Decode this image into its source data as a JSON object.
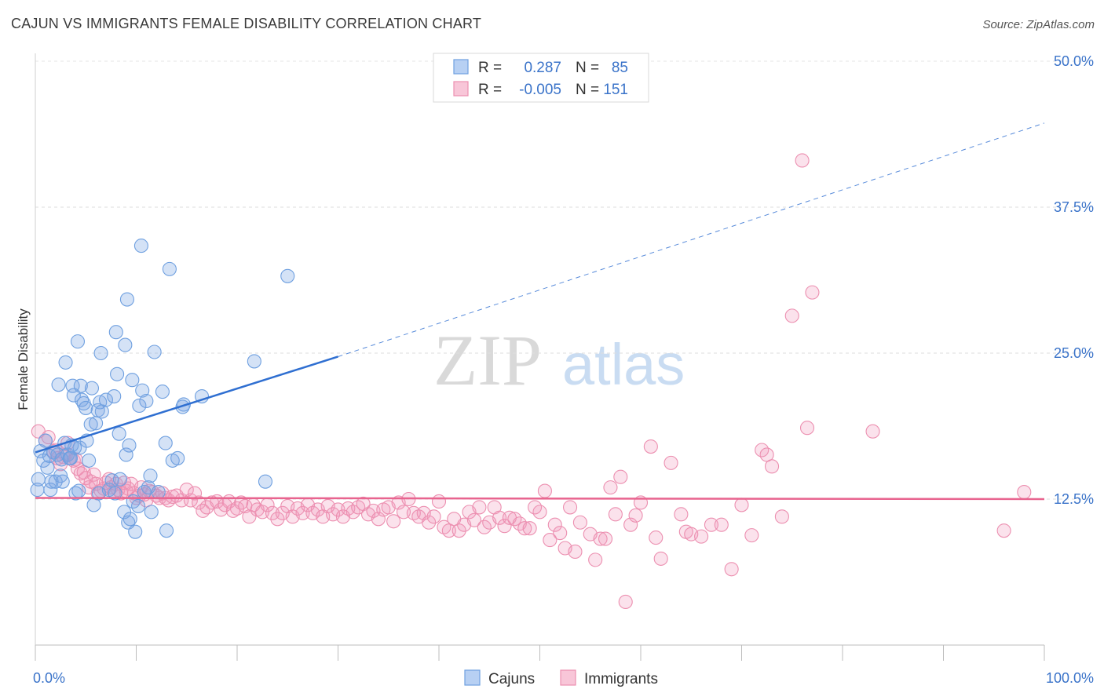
{
  "title": "CAJUN VS IMMIGRANTS FEMALE DISABILITY CORRELATION CHART",
  "source": "Source: ZipAtlas.com",
  "watermark": {
    "zip": "ZIP",
    "atlas": "atlas"
  },
  "colors": {
    "cajun": "#6fa0e0",
    "cajun_fill": "rgba(120,165,228,0.32)",
    "cajun_line": "#2f6fd1",
    "immigrant": "#ec8fb0",
    "immigrant_fill": "rgba(240,150,185,0.28)",
    "immigrant_line": "#e8648f",
    "axis_text": "#3a73c9"
  },
  "legend": {
    "r_label": "R =",
    "n_label": "N =",
    "rows": [
      {
        "r": "0.287",
        "n": "85"
      },
      {
        "r": "-0.005",
        "n": "151"
      }
    ]
  },
  "chart_data": {
    "type": "scatter",
    "xlabel": "",
    "ylabel": "Female Disability",
    "xlim": [
      0,
      100
    ],
    "ylim": [
      0,
      50
    ],
    "x_tick_labels": [
      "0.0%",
      "100.0%"
    ],
    "y_ticks": [
      12.5,
      25.0,
      37.5,
      50.0
    ],
    "y_tick_labels": [
      "12.5%",
      "25.0%",
      "37.5%",
      "50.0%"
    ],
    "grid": "horizontal dashed",
    "legend_position": "top-center",
    "series": [
      {
        "name": "Cajuns",
        "r": 0.287,
        "n": 85,
        "trend": {
          "x": [
            0,
            30
          ],
          "y": [
            16.5,
            24.7
          ],
          "extended_to": [
            100,
            44.7
          ]
        },
        "points": [
          [
            0.2,
            13.3
          ],
          [
            0.3,
            14.2
          ],
          [
            0.5,
            16.6
          ],
          [
            0.8,
            15.8
          ],
          [
            1.0,
            17.5
          ],
          [
            1.2,
            15.2
          ],
          [
            1.4,
            16.2
          ],
          [
            1.5,
            13.3
          ],
          [
            1.6,
            14.0
          ],
          [
            1.8,
            16.5
          ],
          [
            2.0,
            14.0
          ],
          [
            2.2,
            16.3
          ],
          [
            2.3,
            22.3
          ],
          [
            2.5,
            14.5
          ],
          [
            2.6,
            15.9
          ],
          [
            2.7,
            14.0
          ],
          [
            2.9,
            17.3
          ],
          [
            3.0,
            24.2
          ],
          [
            3.2,
            16.3
          ],
          [
            3.4,
            16.0
          ],
          [
            3.5,
            16.0
          ],
          [
            3.6,
            17.1
          ],
          [
            3.7,
            22.2
          ],
          [
            3.8,
            21.4
          ],
          [
            3.9,
            16.9
          ],
          [
            4.0,
            13.0
          ],
          [
            4.2,
            26.0
          ],
          [
            4.3,
            13.2
          ],
          [
            4.4,
            16.9
          ],
          [
            4.5,
            22.2
          ],
          [
            4.6,
            21.0
          ],
          [
            4.8,
            20.7
          ],
          [
            5.0,
            20.3
          ],
          [
            5.1,
            17.5
          ],
          [
            5.3,
            15.8
          ],
          [
            5.5,
            18.9
          ],
          [
            5.6,
            22.0
          ],
          [
            5.8,
            12.0
          ],
          [
            6.0,
            19.0
          ],
          [
            6.2,
            20.1
          ],
          [
            6.3,
            13.0
          ],
          [
            6.4,
            20.8
          ],
          [
            6.5,
            25.0
          ],
          [
            6.6,
            20.0
          ],
          [
            7.0,
            21.0
          ],
          [
            7.3,
            13.3
          ],
          [
            7.6,
            14.1
          ],
          [
            7.8,
            21.3
          ],
          [
            7.9,
            13.0
          ],
          [
            8.0,
            26.8
          ],
          [
            8.1,
            23.2
          ],
          [
            8.3,
            18.1
          ],
          [
            8.4,
            14.2
          ],
          [
            8.8,
            11.4
          ],
          [
            8.9,
            25.7
          ],
          [
            9.0,
            16.3
          ],
          [
            9.1,
            29.6
          ],
          [
            9.2,
            10.5
          ],
          [
            9.3,
            17.1
          ],
          [
            9.4,
            10.8
          ],
          [
            9.6,
            22.7
          ],
          [
            9.7,
            12.3
          ],
          [
            9.9,
            9.7
          ],
          [
            10.2,
            11.9
          ],
          [
            10.3,
            20.5
          ],
          [
            10.5,
            34.2
          ],
          [
            10.6,
            21.8
          ],
          [
            10.8,
            13.1
          ],
          [
            11.0,
            20.9
          ],
          [
            11.2,
            13.5
          ],
          [
            11.4,
            14.5
          ],
          [
            11.5,
            11.4
          ],
          [
            11.8,
            25.1
          ],
          [
            12.2,
            13.1
          ],
          [
            12.6,
            21.7
          ],
          [
            12.9,
            17.3
          ],
          [
            13.0,
            9.8
          ],
          [
            13.3,
            32.2
          ],
          [
            13.6,
            15.8
          ],
          [
            14.1,
            16.0
          ],
          [
            14.6,
            20.4
          ],
          [
            14.7,
            20.6
          ],
          [
            16.5,
            21.3
          ],
          [
            21.7,
            24.3
          ],
          [
            22.8,
            14.0
          ],
          [
            25.0,
            31.6
          ]
        ]
      },
      {
        "name": "Immigrants",
        "r": -0.005,
        "n": 151,
        "trend": {
          "x": [
            0,
            100
          ],
          "y": [
            12.6,
            12.5
          ]
        },
        "points": [
          [
            0.3,
            18.3
          ],
          [
            1.0,
            17.5
          ],
          [
            1.3,
            17.8
          ],
          [
            1.8,
            16.6
          ],
          [
            2.0,
            16.7
          ],
          [
            2.2,
            16.0
          ],
          [
            2.5,
            15.5
          ],
          [
            2.8,
            16.1
          ],
          [
            3.0,
            16.3
          ],
          [
            3.2,
            17.3
          ],
          [
            3.5,
            16.0
          ],
          [
            3.8,
            15.8
          ],
          [
            4.0,
            15.9
          ],
          [
            4.2,
            15.1
          ],
          [
            4.5,
            14.7
          ],
          [
            4.8,
            14.8
          ],
          [
            5.0,
            14.3
          ],
          [
            5.3,
            13.5
          ],
          [
            5.5,
            14.0
          ],
          [
            5.8,
            14.6
          ],
          [
            6.0,
            13.8
          ],
          [
            6.2,
            13.0
          ],
          [
            6.5,
            13.2
          ],
          [
            6.8,
            13.4
          ],
          [
            7.0,
            13.9
          ],
          [
            7.3,
            14.2
          ],
          [
            7.5,
            13.5
          ],
          [
            7.8,
            13.1
          ],
          [
            8.0,
            13.8
          ],
          [
            8.2,
            13.3
          ],
          [
            8.5,
            13.0
          ],
          [
            8.8,
            13.9
          ],
          [
            9.0,
            13.2
          ],
          [
            9.2,
            13.4
          ],
          [
            9.5,
            13.8
          ],
          [
            9.8,
            13.0
          ],
          [
            10.0,
            12.6
          ],
          [
            10.3,
            12.8
          ],
          [
            10.5,
            13.5
          ],
          [
            10.8,
            12.9
          ],
          [
            11.0,
            12.4
          ],
          [
            11.3,
            13.2
          ],
          [
            11.6,
            13.1
          ],
          [
            12.0,
            12.8
          ],
          [
            12.3,
            12.6
          ],
          [
            12.6,
            13.0
          ],
          [
            12.9,
            12.6
          ],
          [
            13.2,
            12.4
          ],
          [
            13.6,
            12.7
          ],
          [
            14.0,
            12.8
          ],
          [
            14.5,
            12.4
          ],
          [
            15.0,
            13.3
          ],
          [
            15.4,
            12.4
          ],
          [
            15.8,
            13.0
          ],
          [
            16.2,
            12.2
          ],
          [
            16.6,
            11.5
          ],
          [
            17.0,
            11.8
          ],
          [
            17.5,
            12.2
          ],
          [
            18.0,
            12.3
          ],
          [
            18.4,
            11.6
          ],
          [
            18.8,
            12.0
          ],
          [
            19.2,
            12.3
          ],
          [
            19.6,
            11.5
          ],
          [
            20.0,
            11.7
          ],
          [
            20.4,
            12.2
          ],
          [
            20.8,
            11.9
          ],
          [
            21.2,
            11.0
          ],
          [
            21.6,
            12.0
          ],
          [
            22.0,
            11.6
          ],
          [
            22.5,
            11.4
          ],
          [
            23.0,
            12.0
          ],
          [
            23.5,
            11.3
          ],
          [
            24.0,
            10.8
          ],
          [
            24.5,
            11.3
          ],
          [
            25.0,
            11.9
          ],
          [
            25.5,
            11.0
          ],
          [
            26.0,
            11.7
          ],
          [
            26.5,
            11.3
          ],
          [
            27.0,
            12.0
          ],
          [
            27.5,
            11.3
          ],
          [
            28.0,
            11.6
          ],
          [
            28.5,
            11.0
          ],
          [
            29.0,
            11.9
          ],
          [
            29.5,
            11.2
          ],
          [
            30.0,
            11.6
          ],
          [
            30.5,
            11.0
          ],
          [
            31.0,
            11.7
          ],
          [
            31.5,
            11.4
          ],
          [
            32.0,
            11.8
          ],
          [
            32.5,
            12.1
          ],
          [
            33.0,
            11.2
          ],
          [
            33.5,
            11.5
          ],
          [
            34.0,
            10.8
          ],
          [
            34.5,
            11.6
          ],
          [
            35.0,
            11.8
          ],
          [
            35.5,
            10.6
          ],
          [
            36.0,
            12.2
          ],
          [
            36.5,
            11.4
          ],
          [
            37.0,
            12.5
          ],
          [
            37.5,
            11.3
          ],
          [
            38.0,
            11.0
          ],
          [
            38.5,
            11.3
          ],
          [
            39.0,
            10.5
          ],
          [
            39.5,
            11.0
          ],
          [
            40.0,
            12.3
          ],
          [
            40.5,
            10.1
          ],
          [
            41.0,
            9.8
          ],
          [
            41.5,
            10.8
          ],
          [
            42.0,
            9.8
          ],
          [
            42.5,
            10.3
          ],
          [
            43.0,
            11.4
          ],
          [
            43.5,
            10.7
          ],
          [
            44.0,
            11.8
          ],
          [
            44.5,
            10.1
          ],
          [
            45.0,
            10.5
          ],
          [
            45.5,
            11.8
          ],
          [
            46.0,
            10.9
          ],
          [
            46.5,
            10.2
          ],
          [
            47.0,
            10.9
          ],
          [
            47.5,
            10.8
          ],
          [
            48.0,
            10.4
          ],
          [
            48.5,
            10.0
          ],
          [
            49.0,
            10.0
          ],
          [
            49.5,
            11.8
          ],
          [
            50.0,
            11.4
          ],
          [
            50.5,
            13.2
          ],
          [
            51.0,
            9.0
          ],
          [
            51.5,
            10.3
          ],
          [
            52.0,
            9.6
          ],
          [
            52.5,
            8.3
          ],
          [
            53.0,
            11.8
          ],
          [
            53.5,
            8.0
          ],
          [
            54.0,
            10.5
          ],
          [
            55.0,
            9.5
          ],
          [
            55.5,
            7.3
          ],
          [
            56.0,
            9.1
          ],
          [
            56.5,
            9.1
          ],
          [
            57.0,
            13.5
          ],
          [
            57.5,
            11.2
          ],
          [
            58.0,
            14.4
          ],
          [
            58.5,
            3.7
          ],
          [
            59.0,
            10.3
          ],
          [
            59.5,
            11.1
          ],
          [
            60.0,
            12.2
          ],
          [
            61.0,
            17.0
          ],
          [
            61.5,
            9.2
          ],
          [
            62.0,
            7.4
          ],
          [
            63.0,
            15.6
          ],
          [
            64.0,
            11.2
          ],
          [
            64.5,
            9.7
          ],
          [
            65.0,
            9.5
          ],
          [
            66.0,
            9.3
          ],
          [
            67.0,
            10.3
          ],
          [
            68.0,
            10.3
          ],
          [
            69.0,
            6.5
          ],
          [
            70.0,
            12.0
          ],
          [
            71.0,
            9.4
          ],
          [
            72.0,
            16.7
          ],
          [
            72.5,
            16.3
          ],
          [
            73.0,
            15.3
          ],
          [
            74.0,
            11.0
          ],
          [
            75.0,
            28.2
          ],
          [
            76.0,
            41.5
          ],
          [
            76.5,
            18.6
          ],
          [
            77.0,
            30.2
          ],
          [
            83.0,
            18.3
          ],
          [
            96.0,
            9.8
          ],
          [
            98.0,
            13.1
          ]
        ]
      }
    ]
  },
  "bottom_legend": [
    {
      "label": "Cajuns"
    },
    {
      "label": "Immigrants"
    }
  ]
}
